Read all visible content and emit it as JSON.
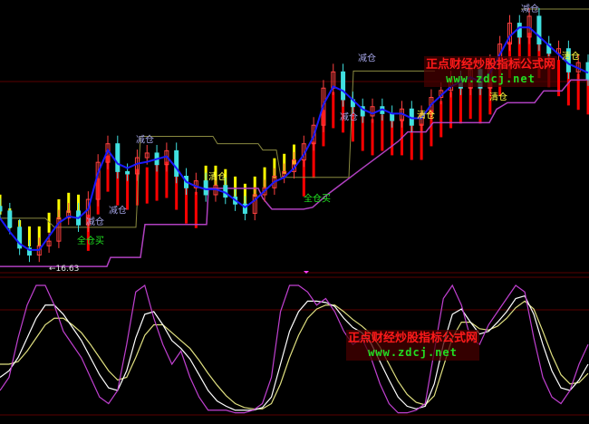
{
  "chart_data": {
    "type": "candlestick",
    "title": "",
    "colors": {
      "background": "#000000",
      "ma": "#1a1aff",
      "resistance": "#8a8a40",
      "support": "#b040c0",
      "candle_up": "#ff4040",
      "candle_down": "#40e0e0",
      "bar_up": "#ff0000",
      "bar_down": "#ffff00",
      "osc_fast": "#c040d0",
      "osc_mid": "#ffffff",
      "osc_slow": "#e0e080",
      "grid": "#5a0000"
    },
    "main": {
      "ylim": [
        16.2,
        28.0
      ],
      "closes": [
        18.9,
        18.2,
        17.3,
        17.0,
        17.4,
        17.6,
        18.6,
        18.9,
        18.3,
        19.4,
        21.0,
        21.8,
        20.6,
        20.5,
        21.2,
        21.4,
        20.9,
        21.5,
        20.4,
        19.9,
        20.2,
        19.6,
        20.0,
        19.5,
        19.2,
        18.8,
        19.6,
        19.9,
        20.4,
        20.6,
        21.1,
        21.8,
        22.6,
        24.2,
        24.9,
        23.7,
        23.4,
        23.0,
        23.4,
        23.1,
        22.8,
        23.3,
        22.6,
        23.1,
        23.8,
        24.1,
        24.6,
        24.2,
        25.0,
        24.2,
        25.3,
        26.1,
        27.0,
        26.4,
        27.3,
        26.1,
        25.7,
        25.9,
        24.9,
        25.3,
        24.6
      ],
      "ma": [
        18.59,
        18.0,
        17.49,
        17.22,
        17.22,
        17.81,
        18.39,
        18.67,
        18.59,
        18.98,
        20.55,
        21.53,
        20.94,
        20.75,
        20.94,
        21.02,
        21.14,
        21.26,
        20.75,
        20.16,
        19.96,
        19.84,
        19.84,
        19.69,
        19.37,
        19.06,
        19.37,
        19.77,
        20.16,
        20.35,
        20.75,
        21.33,
        22.12,
        23.49,
        24.27,
        24.08,
        23.69,
        23.29,
        23.1,
        23.29,
        23.1,
        23.1,
        22.9,
        22.9,
        23.49,
        23.88,
        24.27,
        24.47,
        24.67,
        24.47,
        24.86,
        25.65,
        26.43,
        26.82,
        26.82,
        26.43,
        26.04,
        25.65,
        25.25,
        25.06,
        24.86
      ],
      "bar_state": [
        "down",
        "down",
        "down",
        "down",
        "down",
        "down",
        "down",
        "down",
        "down",
        "up",
        "up",
        "up",
        "up",
        "up",
        "up",
        "up",
        "up",
        "up",
        "up",
        "up",
        "up",
        "down",
        "down",
        "down",
        "down",
        "down",
        "down",
        "down",
        "down",
        "down",
        "down",
        "up",
        "up",
        "up",
        "up",
        "up",
        "up",
        "up",
        "up",
        "up",
        "up",
        "up",
        "up",
        "up",
        "up",
        "up",
        "up",
        "up",
        "up",
        "up",
        "up",
        "up",
        "up",
        "up",
        "up",
        "up",
        "up",
        "up",
        "up",
        "up",
        "up"
      ],
      "resistance_segments": [
        [
          [
            0,
            18.59
          ],
          [
            10,
            18.59
          ],
          [
            12,
            18.2
          ],
          [
            30,
            18.2
          ],
          [
            31,
            22.12
          ],
          [
            47,
            22.12
          ],
          [
            48,
            21.8
          ],
          [
            57,
            21.8
          ],
          [
            58,
            21.53
          ],
          [
            61,
            21.53
          ],
          [
            62,
            20.35
          ],
          [
            77,
            20.35
          ],
          [
            78,
            24.94
          ],
          [
            96,
            24.94
          ]
        ],
        [
          [
            115,
            27.61
          ],
          [
            130,
            27.61
          ]
        ]
      ],
      "support": [
        [
          0,
          16.51
        ],
        [
          23.6,
          16.51
        ],
        [
          24.4,
          16.9
        ],
        [
          31,
          16.9
        ],
        [
          32,
          18.32
        ],
        [
          45.6,
          18.32
        ],
        [
          46,
          19.88
        ],
        [
          57,
          19.88
        ],
        [
          58,
          19.45
        ],
        [
          60,
          18.98
        ],
        [
          67,
          18.98
        ],
        [
          69,
          19.06
        ],
        [
          72,
          19.57
        ],
        [
          76,
          20.16
        ],
        [
          80,
          20.75
        ],
        [
          84,
          21.33
        ],
        [
          88,
          21.92
        ],
        [
          90,
          22.31
        ],
        [
          94,
          22.31
        ],
        [
          95.6,
          22.71
        ],
        [
          108,
          22.71
        ],
        [
          109.6,
          23.29
        ],
        [
          112,
          23.57
        ],
        [
          118,
          23.57
        ],
        [
          120,
          24.08
        ],
        [
          124,
          24.08
        ],
        [
          126,
          24.55
        ],
        [
          130,
          24.55
        ]
      ],
      "signals": [
        {
          "text": "减仓",
          "x": 30,
          "price": 22.24,
          "kind": "reduce"
        },
        {
          "text": "减仓",
          "x": 24,
          "price": 19.18,
          "kind": "reduce"
        },
        {
          "text": "减仓",
          "x": 19,
          "price": 18.71,
          "kind": "reduce"
        },
        {
          "text": "减仓",
          "x": 79,
          "price": 25.76,
          "kind": "reduce"
        },
        {
          "text": "减仓",
          "x": 75,
          "price": 23.22,
          "kind": "reduce"
        },
        {
          "text": "减仓",
          "x": 115,
          "price": 27.88,
          "kind": "reduce"
        },
        {
          "text": "清仓",
          "x": 46,
          "price": 20.63,
          "kind": "clear"
        },
        {
          "text": "清仓",
          "x": 92,
          "price": 23.29,
          "kind": "clear"
        },
        {
          "text": "清仓",
          "x": 108,
          "price": 24.08,
          "kind": "clear"
        },
        {
          "text": "清仓",
          "x": 124,
          "price": 25.84,
          "kind": "clear"
        },
        {
          "text": "全仓买",
          "x": 17,
          "price": 17.88,
          "kind": "buy"
        },
        {
          "text": "全仓买",
          "x": 67,
          "price": 19.69,
          "kind": "buy"
        }
      ],
      "low_marker": {
        "text": "←16.63",
        "value": 16.63,
        "x": 6
      }
    },
    "oscillator": {
      "ylim": [
        0,
        100
      ],
      "fast": [
        20,
        30,
        60,
        85,
        100,
        100,
        85,
        65,
        55,
        45,
        30,
        15,
        10,
        20,
        55,
        95,
        100,
        75,
        55,
        40,
        50,
        30,
        15,
        5,
        5,
        5,
        3,
        3,
        5,
        10,
        30,
        80,
        100,
        100,
        95,
        85,
        90,
        80,
        65,
        55,
        60,
        45,
        25,
        10,
        3,
        3,
        5,
        10,
        50,
        90,
        100,
        85,
        60,
        55,
        70,
        80,
        90,
        100,
        95,
        60,
        30,
        15,
        10,
        20,
        40,
        55
      ],
      "mid": [
        30,
        35,
        45,
        60,
        75,
        85,
        85,
        78,
        68,
        58,
        45,
        32,
        22,
        20,
        35,
        60,
        78,
        80,
        70,
        58,
        52,
        44,
        32,
        20,
        12,
        8,
        5,
        5,
        5,
        7,
        15,
        40,
        65,
        80,
        88,
        88,
        87,
        84,
        75,
        68,
        64,
        56,
        42,
        28,
        15,
        8,
        6,
        8,
        25,
        55,
        78,
        82,
        72,
        63,
        65,
        72,
        80,
        90,
        92,
        78,
        55,
        35,
        22,
        20,
        28,
        40
      ],
      "slow": [
        40,
        40,
        42,
        50,
        60,
        70,
        75,
        75,
        70,
        64,
        55,
        45,
        35,
        28,
        30,
        45,
        62,
        70,
        70,
        64,
        58,
        52,
        43,
        33,
        24,
        16,
        10,
        7,
        6,
        6,
        10,
        25,
        45,
        62,
        75,
        82,
        85,
        85,
        80,
        74,
        69,
        63,
        53,
        40,
        27,
        17,
        11,
        9,
        16,
        38,
        60,
        72,
        72,
        67,
        66,
        69,
        75,
        83,
        88,
        82,
        65,
        47,
        32,
        25,
        26,
        33
      ]
    }
  },
  "watermarks": [
    {
      "title": "正点财经炒股指标公式网",
      "url": "www.zdcj.net"
    },
    {
      "title": "正点财经炒股指标公式网",
      "url": "www.zdcj.net"
    }
  ]
}
